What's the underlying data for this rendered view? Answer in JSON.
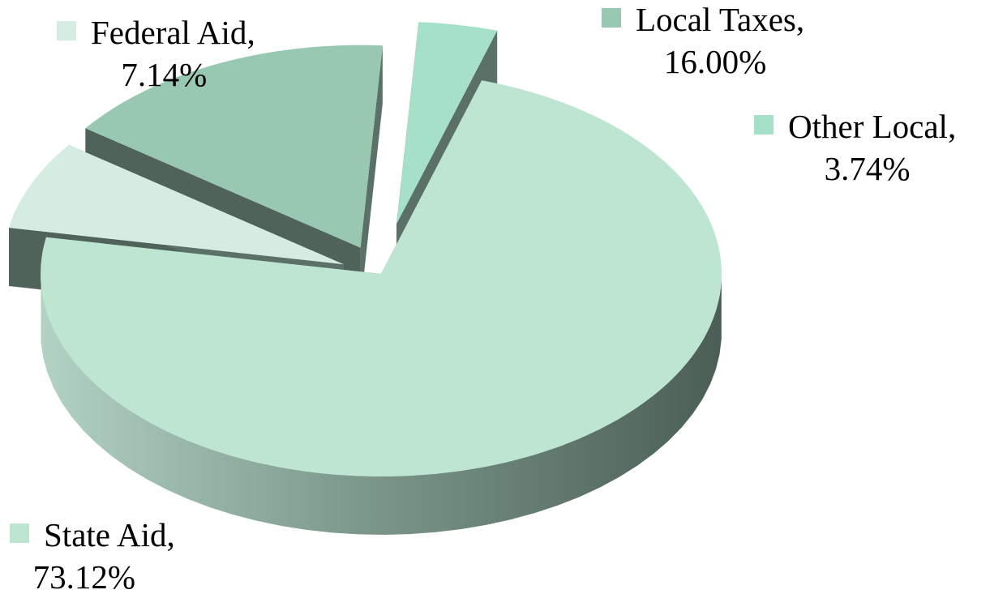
{
  "chart_data": {
    "type": "pie",
    "style": "3d-exploded",
    "slices": [
      {
        "category": "State Aid",
        "value": 73.12,
        "value_label": "73.12%",
        "color": "#bde5d2"
      },
      {
        "category": "Federal Aid",
        "value": 7.14,
        "value_label": "7.14%",
        "color": "#d4ece2"
      },
      {
        "category": "Local Taxes",
        "value": 16.0,
        "value_label": "16.00%",
        "color": "#98c8b2"
      },
      {
        "category": "Other Local",
        "value": 3.74,
        "value_label": "3.74%",
        "color": "#a6e0c8"
      }
    ],
    "label_separator": ",",
    "legend": "none",
    "side_color": "#4e6359"
  }
}
